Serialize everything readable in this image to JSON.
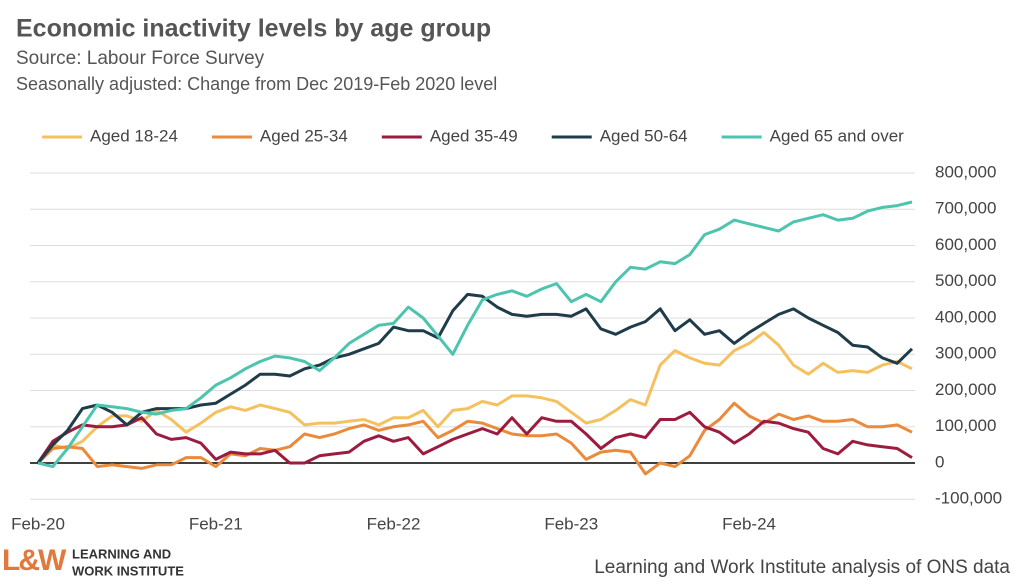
{
  "chart_data": {
    "type": "line",
    "title": "Economic inactivity levels by age group",
    "subtitle": "Source: Labour Force Survey",
    "note": "Seasonally adjusted: Change from Dec 2019-Feb 2020 level",
    "source": "Learning and Work Institute analysis of ONS data",
    "logo": {
      "mark": "L&W",
      "line1": "LEARNING AND",
      "line2": "WORK INSTITUTE"
    },
    "categories": [
      "Feb-20",
      null,
      null,
      null,
      null,
      null,
      null,
      null,
      null,
      null,
      null,
      null,
      "Feb-21",
      null,
      null,
      null,
      null,
      null,
      null,
      null,
      null,
      null,
      null,
      null,
      "Feb-22",
      null,
      null,
      null,
      null,
      null,
      null,
      null,
      null,
      null,
      null,
      null,
      "Feb-23",
      null,
      null,
      null,
      null,
      null,
      null,
      null,
      null,
      null,
      null,
      null,
      "Feb-24",
      null,
      null,
      null,
      null,
      null,
      null,
      null,
      null,
      null,
      null,
      null
    ],
    "ylim": [
      -100000,
      800000
    ],
    "yticks": [
      {
        "value": -100000,
        "label": "-100,000"
      },
      0,
      {
        "value": 100000,
        "label": "100,000"
      },
      {
        "value": 200000,
        "label": "200,000"
      },
      {
        "value": 300000,
        "label": "300,000"
      },
      {
        "value": 400000,
        "label": "400,000"
      },
      {
        "value": 500000,
        "label": "500,000"
      },
      {
        "value": 600000,
        "label": "600,000"
      },
      {
        "value": 700000,
        "label": "700,000"
      },
      {
        "value": 800000,
        "label": "800,000"
      }
    ],
    "grid": true,
    "series": [
      {
        "name": "Aged 18-24",
        "color": "#f5c15f",
        "values": [
          0,
          50000,
          40000,
          60000,
          100000,
          130000,
          130000,
          115000,
          145000,
          120000,
          85000,
          110000,
          140000,
          155000,
          145000,
          160000,
          150000,
          140000,
          105000,
          110000,
          110000,
          115000,
          120000,
          105000,
          125000,
          125000,
          145000,
          100000,
          145000,
          150000,
          170000,
          160000,
          185000,
          185000,
          180000,
          170000,
          140000,
          110000,
          120000,
          145000,
          175000,
          160000,
          270000,
          310000,
          290000,
          275000,
          270000,
          310000,
          330000,
          360000,
          325000,
          270000,
          245000,
          275000,
          250000,
          255000,
          250000,
          270000,
          280000,
          260000
        ]
      },
      {
        "name": "Aged 25-34",
        "color": "#ea8a3b",
        "values": [
          0,
          40000,
          45000,
          40000,
          -10000,
          -5000,
          -10000,
          -15000,
          -5000,
          -5000,
          15000,
          15000,
          -10000,
          25000,
          20000,
          40000,
          35000,
          45000,
          80000,
          70000,
          80000,
          95000,
          105000,
          90000,
          100000,
          105000,
          115000,
          70000,
          90000,
          115000,
          110000,
          95000,
          80000,
          75000,
          75000,
          80000,
          55000,
          10000,
          30000,
          35000,
          30000,
          -30000,
          0,
          -10000,
          20000,
          90000,
          120000,
          165000,
          130000,
          110000,
          135000,
          120000,
          130000,
          115000,
          115000,
          120000,
          100000,
          100000,
          105000,
          85000
        ]
      },
      {
        "name": "Aged 35-49",
        "color": "#9c1c3f",
        "values": [
          0,
          60000,
          85000,
          105000,
          100000,
          100000,
          105000,
          125000,
          80000,
          65000,
          70000,
          55000,
          10000,
          30000,
          25000,
          25000,
          35000,
          0,
          0,
          20000,
          25000,
          30000,
          60000,
          75000,
          60000,
          70000,
          25000,
          45000,
          65000,
          80000,
          95000,
          80000,
          125000,
          80000,
          125000,
          115000,
          115000,
          80000,
          40000,
          70000,
          80000,
          70000,
          120000,
          120000,
          140000,
          100000,
          85000,
          55000,
          80000,
          115000,
          110000,
          95000,
          85000,
          40000,
          25000,
          60000,
          50000,
          45000,
          40000,
          15000
        ]
      },
      {
        "name": "Aged 50-64",
        "color": "#1f3c4a",
        "values": [
          0,
          50000,
          90000,
          150000,
          160000,
          140000,
          105000,
          140000,
          150000,
          150000,
          150000,
          160000,
          165000,
          190000,
          215000,
          245000,
          245000,
          240000,
          260000,
          270000,
          290000,
          300000,
          315000,
          330000,
          375000,
          365000,
          365000,
          345000,
          420000,
          465000,
          460000,
          430000,
          410000,
          405000,
          410000,
          410000,
          405000,
          425000,
          370000,
          355000,
          375000,
          390000,
          425000,
          365000,
          395000,
          355000,
          365000,
          330000,
          360000,
          385000,
          410000,
          425000,
          400000,
          380000,
          360000,
          325000,
          320000,
          290000,
          275000,
          315000
        ]
      },
      {
        "name": "Aged 65 and over",
        "color": "#4cc4ae",
        "values": [
          0,
          -10000,
          40000,
          100000,
          160000,
          155000,
          150000,
          140000,
          135000,
          145000,
          150000,
          180000,
          215000,
          235000,
          260000,
          280000,
          295000,
          290000,
          280000,
          255000,
          290000,
          330000,
          355000,
          380000,
          385000,
          430000,
          400000,
          350000,
          300000,
          380000,
          450000,
          465000,
          475000,
          460000,
          480000,
          495000,
          445000,
          465000,
          445000,
          500000,
          540000,
          535000,
          555000,
          550000,
          575000,
          630000,
          645000,
          670000,
          660000,
          650000,
          640000,
          665000,
          675000,
          685000,
          670000,
          675000,
          695000,
          705000,
          710000,
          720000
        ]
      }
    ]
  }
}
